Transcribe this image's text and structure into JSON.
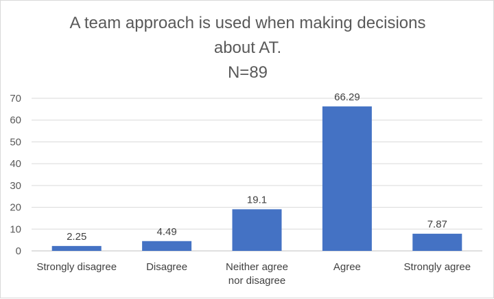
{
  "chart_data": {
    "type": "bar",
    "title_lines": [
      "A team approach is used when making decisions",
      "about AT.",
      "N=89"
    ],
    "categories": [
      [
        "Strongly disagree"
      ],
      [
        "Disagree"
      ],
      [
        "Neither agree",
        "nor disagree"
      ],
      [
        "Agree"
      ],
      [
        "Strongly agree"
      ]
    ],
    "values": [
      2.25,
      4.49,
      19.1,
      66.29,
      7.87
    ],
    "data_labels": [
      "2.25",
      "4.49",
      "19.1",
      "66.29",
      "7.87"
    ],
    "ylim": [
      0,
      70
    ],
    "yticks": [
      0,
      10,
      20,
      30,
      40,
      50,
      60,
      70
    ],
    "grid": true,
    "bar_color": "#4472c4",
    "grid_color": "#d9d9d9"
  }
}
